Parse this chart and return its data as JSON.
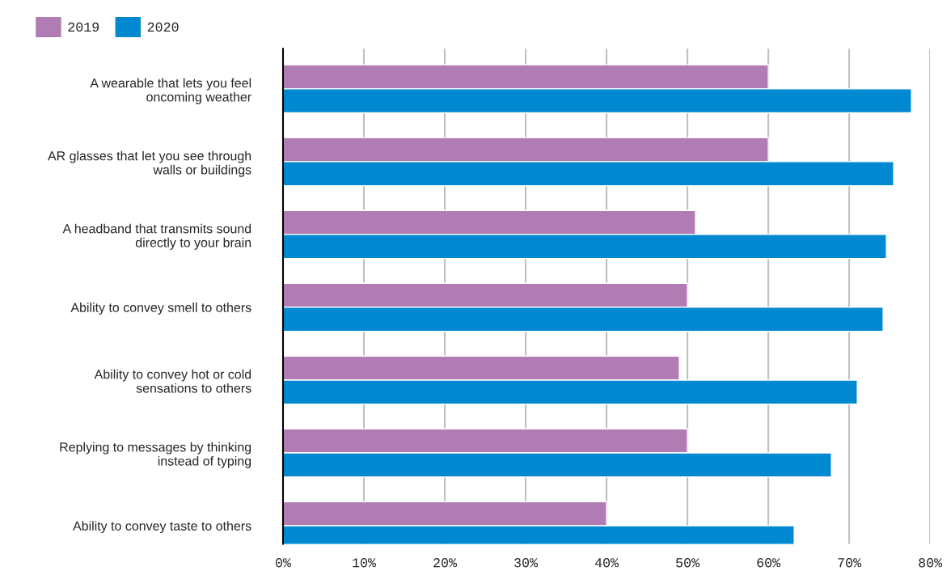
{
  "chart_data": {
    "type": "bar",
    "orientation": "horizontal",
    "categories": [
      "A wearable that lets you feel\noncoming weather",
      "AR glasses that let you see through\nwalls or buildings",
      "A headband that transmits sound\ndirectly to your brain",
      "Ability to convey smell to others",
      "Ability to convey hot or cold\nsensations to others",
      "Replying to messages by thinking\ninstead of typing",
      "Ability to convey taste to others"
    ],
    "series": [
      {
        "name": "2019",
        "color": "#b07cb3",
        "values": [
          60,
          60,
          51,
          50,
          49,
          50,
          40
        ]
      },
      {
        "name": "2020",
        "color": "#0088d1",
        "values": [
          77.7,
          75.5,
          74.6,
          74.2,
          71,
          67.8,
          63.2
        ]
      }
    ],
    "xlim": [
      0,
      80
    ],
    "xticks": [
      {
        "value": 0,
        "label": "0%"
      },
      {
        "value": 10,
        "label": "10%"
      },
      {
        "value": 20,
        "label": "20%"
      },
      {
        "value": 30,
        "label": "30%"
      },
      {
        "value": 40,
        "label": "40%"
      },
      {
        "value": 50,
        "label": "50%"
      },
      {
        "value": 60,
        "label": "60%"
      },
      {
        "value": 70,
        "label": "70%"
      },
      {
        "value": 80,
        "label": "80%"
      }
    ],
    "grid": "x",
    "legend": "top left"
  }
}
